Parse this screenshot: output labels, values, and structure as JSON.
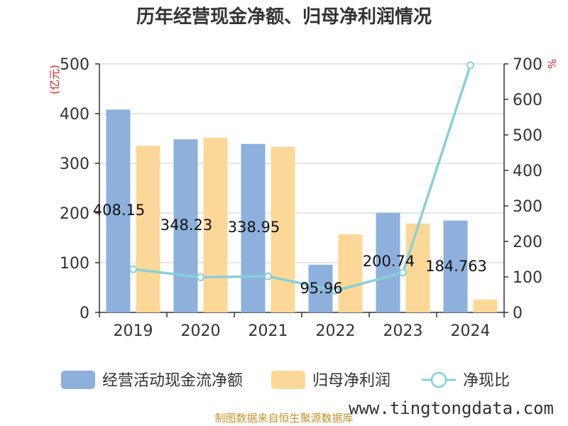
{
  "chart_data": {
    "type": "bar",
    "title": "历年经营现金净额、归母净利润情况",
    "categories": [
      "2019",
      "2020",
      "2021",
      "2022",
      "2023",
      "2024"
    ],
    "left_unit": "(亿元)",
    "right_unit": "%",
    "ylim_left": [
      0,
      500
    ],
    "yticks_left": [
      0,
      100,
      200,
      300,
      400,
      500
    ],
    "ylim_right": [
      0,
      700
    ],
    "yticks_right": [
      0,
      100,
      200,
      300,
      400,
      500,
      600,
      700
    ],
    "grid": true,
    "legend_position": "bottom",
    "series": [
      {
        "name": "经营活动现金流净额",
        "type": "bar",
        "axis": "left",
        "color": "#8eb0dc",
        "values": [
          408.15,
          348.23,
          338.95,
          95.96,
          200.74,
          184.763
        ]
      },
      {
        "name": "归母净利润",
        "type": "bar",
        "axis": "left",
        "color": "#fcd898",
        "values": [
          335.5,
          351.5,
          333.0,
          157.0,
          179.0,
          26.0
        ]
      },
      {
        "name": "净现比",
        "type": "line",
        "axis": "right",
        "color": "#87d0d6",
        "values": [
          121.7,
          99.1,
          101.8,
          61.1,
          112.1,
          696.0
        ]
      }
    ],
    "data_labels": [
      "408.15",
      "348.23",
      "338.95",
      "95.96",
      "200.74",
      "184.763"
    ],
    "source_note": "制图数据来自恒生聚源数据库",
    "watermark": "www.tingtongdata.com"
  }
}
